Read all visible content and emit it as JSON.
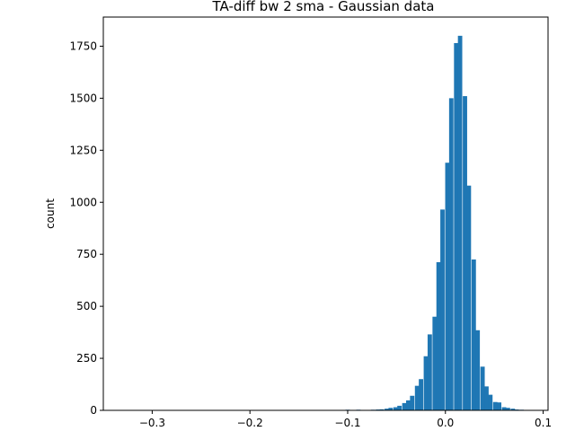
{
  "chart_data": {
    "type": "bar",
    "title": "TA-diff bw 2 sma - Gaussian data",
    "xlabel": "",
    "ylabel": "count",
    "xlim": [
      -0.35,
      0.105
    ],
    "ylim": [
      0,
      1890
    ],
    "bin_width": 0.00445,
    "bins": [
      {
        "x": -0.333,
        "count": 2
      },
      {
        "x": -0.233,
        "count": 2
      },
      {
        "x": -0.189,
        "count": 1
      },
      {
        "x": -0.166,
        "count": 1
      },
      {
        "x": -0.158,
        "count": 1
      },
      {
        "x": -0.141,
        "count": 1
      },
      {
        "x": -0.122,
        "count": 1
      },
      {
        "x": -0.118,
        "count": 1
      },
      {
        "x": -0.105,
        "count": 2
      },
      {
        "x": -0.1,
        "count": 3
      },
      {
        "x": -0.096,
        "count": 2
      },
      {
        "x": -0.089,
        "count": 3
      },
      {
        "x": -0.078,
        "count": 2
      },
      {
        "x": -0.074,
        "count": 3
      },
      {
        "x": -0.069,
        "count": 4
      },
      {
        "x": -0.065,
        "count": 5
      },
      {
        "x": -0.06,
        "count": 8
      },
      {
        "x": -0.056,
        "count": 12
      },
      {
        "x": -0.051,
        "count": 15
      },
      {
        "x": -0.047,
        "count": 22
      },
      {
        "x": -0.042,
        "count": 35
      },
      {
        "x": -0.038,
        "count": 48
      },
      {
        "x": -0.034,
        "count": 70
      },
      {
        "x": -0.029,
        "count": 118
      },
      {
        "x": -0.025,
        "count": 150
      },
      {
        "x": -0.02,
        "count": 260
      },
      {
        "x": -0.016,
        "count": 365
      },
      {
        "x": -0.011,
        "count": 450
      },
      {
        "x": -0.007,
        "count": 712
      },
      {
        "x": -0.003,
        "count": 965
      },
      {
        "x": 0.002,
        "count": 1190
      },
      {
        "x": 0.006,
        "count": 1500
      },
      {
        "x": 0.011,
        "count": 1765
      },
      {
        "x": 0.015,
        "count": 1800
      },
      {
        "x": 0.02,
        "count": 1510
      },
      {
        "x": 0.024,
        "count": 1080
      },
      {
        "x": 0.029,
        "count": 725
      },
      {
        "x": 0.033,
        "count": 385
      },
      {
        "x": 0.038,
        "count": 210
      },
      {
        "x": 0.042,
        "count": 115
      },
      {
        "x": 0.046,
        "count": 75
      },
      {
        "x": 0.051,
        "count": 40
      },
      {
        "x": 0.055,
        "count": 38
      },
      {
        "x": 0.06,
        "count": 15
      },
      {
        "x": 0.064,
        "count": 12
      },
      {
        "x": 0.069,
        "count": 8
      },
      {
        "x": 0.073,
        "count": 4
      },
      {
        "x": 0.078,
        "count": 3
      },
      {
        "x": 0.082,
        "count": 2
      },
      {
        "x": 0.087,
        "count": 2
      }
    ],
    "x_ticks": [
      -0.3,
      -0.2,
      -0.1,
      0.0,
      0.1
    ],
    "x_tick_labels": [
      "−0.3",
      "−0.2",
      "−0.1",
      "0.0",
      "0.1"
    ],
    "y_ticks": [
      0,
      250,
      500,
      750,
      1000,
      1250,
      1500,
      1750
    ],
    "y_tick_labels": [
      "0",
      "250",
      "500",
      "750",
      "1000",
      "1250",
      "1500",
      "1750"
    ],
    "bar_color": "#1f77b4",
    "grid": false,
    "legend": "none"
  }
}
